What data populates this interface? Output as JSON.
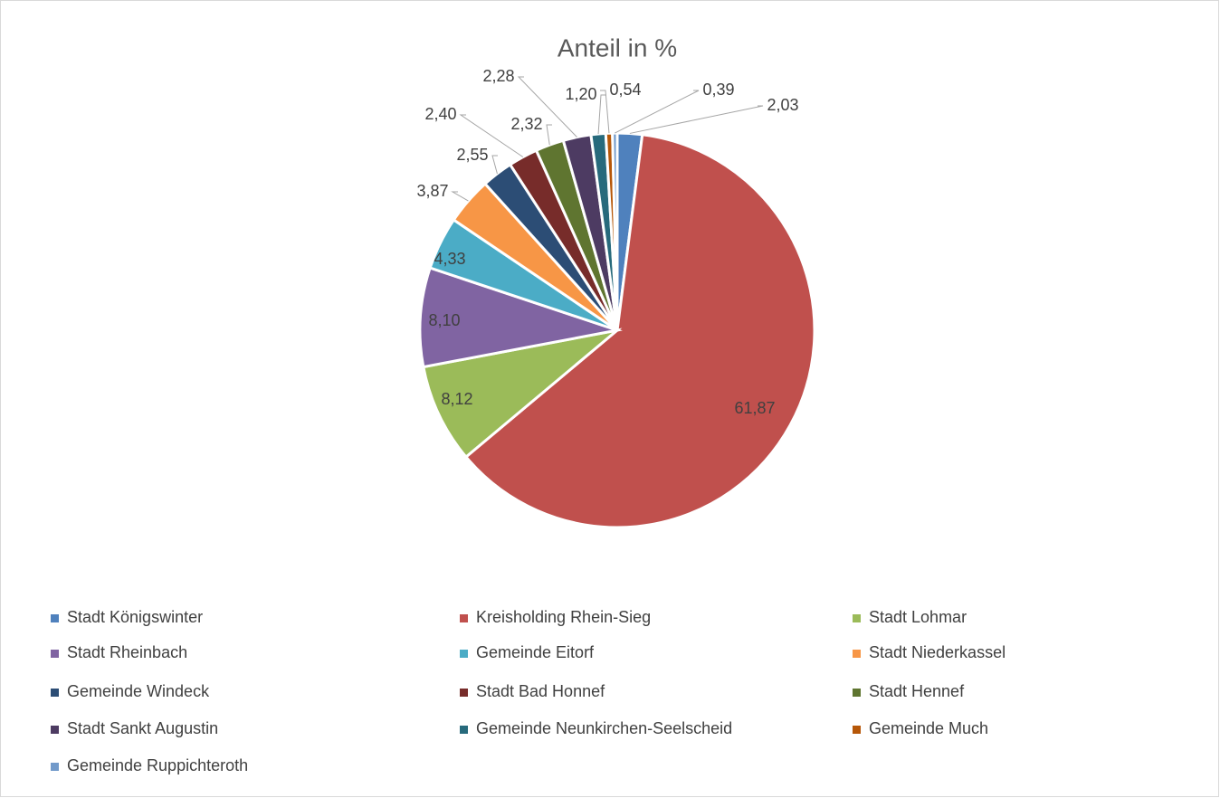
{
  "chart_data": {
    "type": "pie",
    "title": "Anteil in %",
    "categories": [
      "Stadt Königswinter",
      "Kreisholding Rhein-Sieg",
      "Stadt Lohmar",
      "Stadt Rheinbach",
      "Gemeinde Eitorf",
      "Stadt Niederkassel",
      "Gemeinde Windeck",
      "Stadt Bad Honnef",
      "Stadt Hennef",
      "Stadt Sankt Augustin",
      "Gemeinde Neunkirchen-Seelscheid",
      "Gemeinde Much",
      "Gemeinde Ruppichteroth"
    ],
    "values": [
      2.03,
      61.87,
      8.12,
      8.1,
      4.33,
      3.87,
      2.55,
      2.4,
      2.32,
      2.28,
      1.2,
      0.54,
      0.39
    ],
    "value_labels": [
      "2,03",
      "61,87",
      "8,12",
      "8,10",
      "4,33",
      "3,87",
      "2,55",
      "2,40",
      "2,32",
      "2,28",
      "1,20",
      "0,54",
      "0,39"
    ],
    "colors": [
      "#4f81bd",
      "#c0504d",
      "#9bbb59",
      "#8064a2",
      "#4bacc6",
      "#f79646",
      "#2c4d75",
      "#772c2a",
      "#5f7530",
      "#4d3b62",
      "#276a7c",
      "#b65708",
      "#729aca"
    ],
    "legend": "bottom"
  }
}
